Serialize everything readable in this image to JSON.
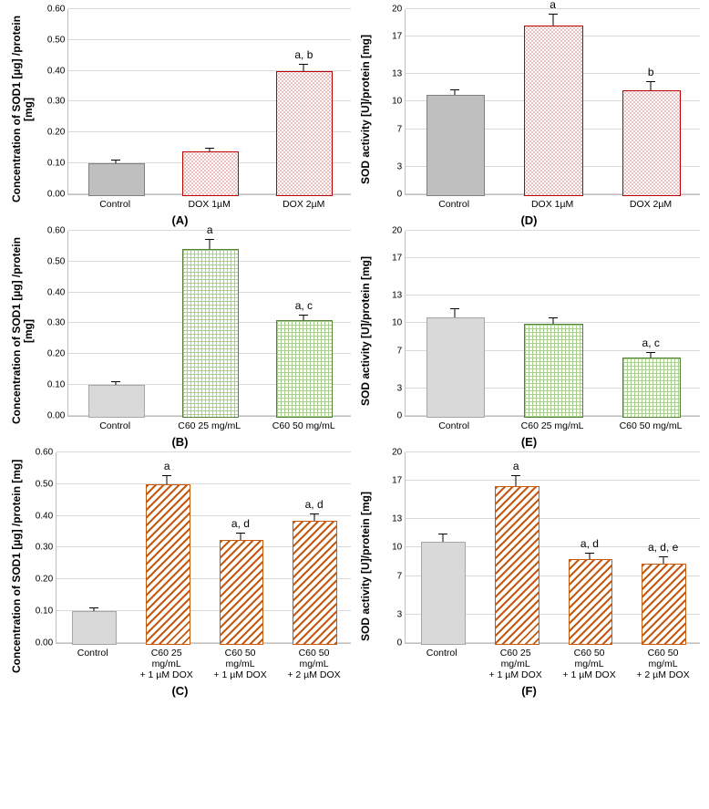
{
  "panels": [
    {
      "letter": "(A)",
      "ylabel": "Concentration of SOD1 [µg]\n/protein [mg]",
      "ymin": 0,
      "ymax": 0.6,
      "ystep": 0.1,
      "decimals": 2,
      "categories": [
        "Control",
        "DOX 1µM",
        "DOX 2µM"
      ],
      "values": [
        0.1,
        0.14,
        0.4
      ],
      "errors": [
        0.008,
        0.008,
        0.02
      ],
      "fills": [
        "fill-gray",
        "fill-red-dots",
        "fill-red-dots"
      ],
      "annotations": [
        "",
        "",
        "a, b"
      ]
    },
    {
      "letter": "(D)",
      "ylabel": "SOD activity [U]/protein [mg]",
      "ymin": 0,
      "ymax": 20,
      "yticks": [
        0,
        3,
        7,
        10,
        13,
        17,
        20
      ],
      "decimals": 0,
      "categories": [
        "Control",
        "DOX 1µM",
        "DOX 2µM"
      ],
      "values": [
        10.7,
        18.2,
        11.2
      ],
      "errors": [
        0.5,
        1.2,
        0.9
      ],
      "fills": [
        "fill-gray",
        "fill-red-dots",
        "fill-red-dots"
      ],
      "annotations": [
        "",
        "a",
        "b"
      ]
    },
    {
      "letter": "(B)",
      "ylabel": "Concentration of SOD1 [µg]\n/protein [mg]",
      "ymin": 0,
      "ymax": 0.6,
      "ystep": 0.1,
      "decimals": 2,
      "categories": [
        "Control",
        "C60 25 mg/mL",
        "C60 50 mg/mL"
      ],
      "values": [
        0.1,
        0.54,
        0.31
      ],
      "errors": [
        0.008,
        0.03,
        0.015
      ],
      "fills": [
        "fill-lightgray",
        "fill-green-grid",
        "fill-green-grid"
      ],
      "annotations": [
        "",
        "a",
        "a, c"
      ]
    },
    {
      "letter": "(E)",
      "ylabel": "SOD activity [U]/protein [mg]",
      "ymin": 0,
      "ymax": 20,
      "yticks": [
        0,
        3,
        7,
        10,
        13,
        17,
        20
      ],
      "decimals": 0,
      "categories": [
        "Control",
        "C60 25 mg/mL",
        "C60 50 mg/mL"
      ],
      "values": [
        10.6,
        9.9,
        6.3
      ],
      "errors": [
        0.9,
        0.6,
        0.5
      ],
      "fills": [
        "fill-lightgray",
        "fill-green-grid",
        "fill-green-grid"
      ],
      "annotations": [
        "",
        "",
        "a, c"
      ]
    },
    {
      "letter": "(C)",
      "tall": true,
      "ylabel": "Concentration of SOD1 [µg]\n/protein [mg]",
      "ymin": 0,
      "ymax": 0.6,
      "ystep": 0.1,
      "decimals": 2,
      "categories": [
        "Control",
        "C60 25\nmg/mL\n+ 1 µM DOX",
        "C60 50\nmg/mL\n+ 1 µM DOX",
        "C60 50\nmg/mL\n+ 2 µM DOX"
      ],
      "values": [
        0.1,
        0.5,
        0.325,
        0.385
      ],
      "errors": [
        0.008,
        0.025,
        0.02,
        0.02
      ],
      "fills": [
        "fill-lightgray",
        "fill-orange-diag",
        "fill-orange-diag",
        "fill-orange-diag"
      ],
      "annotations": [
        "",
        "a",
        "a, d",
        "a, d"
      ]
    },
    {
      "letter": "(F)",
      "tall": true,
      "ylabel": "SOD activity [U]/protein [mg]",
      "ymin": 0,
      "ymax": 20,
      "yticks": [
        0,
        3,
        7,
        10,
        13,
        17,
        20
      ],
      "decimals": 0,
      "categories": [
        "Control",
        "C60 25\nmg/mL\n+ 1 µM DOX",
        "C60 50\nmg/mL\n+ 1 µM DOX",
        "C60 50\nmg/mL\n+ 2 µM DOX"
      ],
      "values": [
        10.6,
        16.5,
        8.8,
        8.3
      ],
      "errors": [
        0.8,
        1.0,
        0.6,
        0.7
      ],
      "fills": [
        "fill-lightgray",
        "fill-orange-diag",
        "fill-orange-diag",
        "fill-orange-diag"
      ],
      "annotations": [
        "",
        "a",
        "a, d",
        "a, d, e"
      ]
    }
  ],
  "colors": {
    "grid": "#d9d9d9",
    "axis": "#bfbfbf",
    "gray_fill": "#bfbfbf",
    "lightgray_fill": "#d9d9d9",
    "red": "#c00000",
    "green_line": "#a9d18e",
    "green_border": "#548235",
    "orange": "#c55a11",
    "background": "#ffffff"
  },
  "typography": {
    "axis_label_fontsize": 12,
    "tick_fontsize": 10,
    "annotation_fontsize": 12,
    "panel_letter_fontsize": 13,
    "font_family": "Arial, sans-serif"
  }
}
